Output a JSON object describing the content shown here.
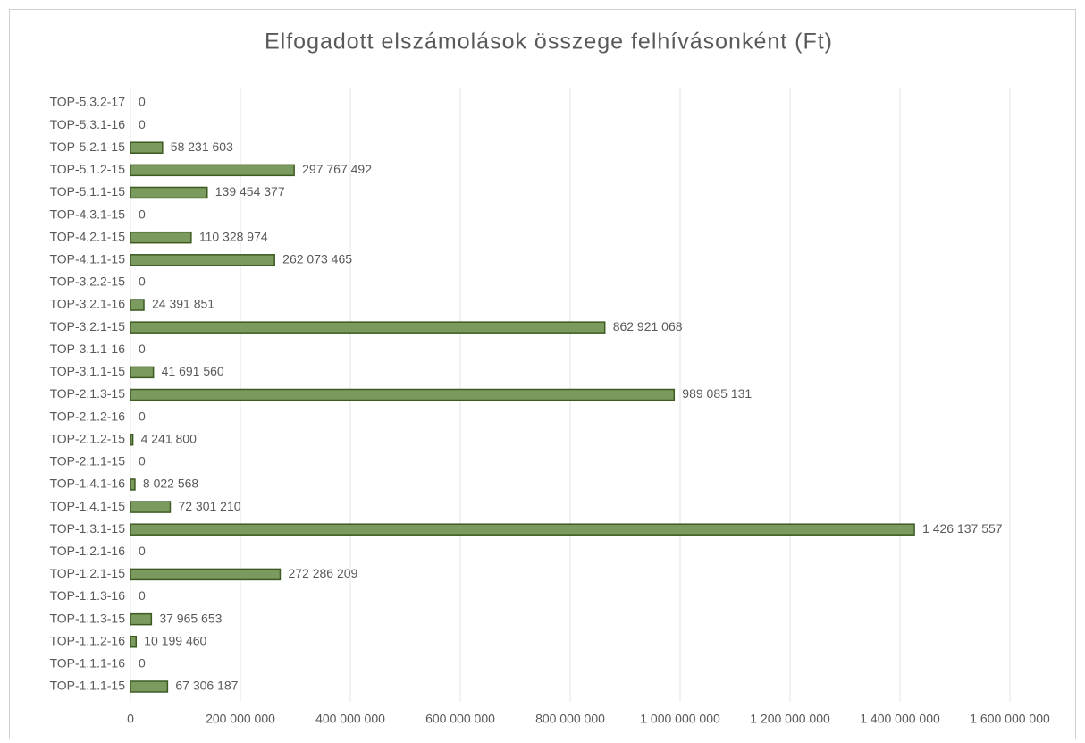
{
  "chart_data": {
    "type": "barh",
    "title": "Elfogadott elszámolások összege felhívásonként (Ft)",
    "categories": [
      "TOP-1.1.1-15",
      "TOP-1.1.1-16",
      "TOP-1.1.2-16",
      "TOP-1.1.3-15",
      "TOP-1.1.3-16",
      "TOP-1.2.1-15",
      "TOP-1.2.1-16",
      "TOP-1.3.1-15",
      "TOP-1.4.1-15",
      "TOP-1.4.1-16",
      "TOP-2.1.1-15",
      "TOP-2.1.2-15",
      "TOP-2.1.2-16",
      "TOP-2.1.3-15",
      "TOP-3.1.1-15",
      "TOP-3.1.1-16",
      "TOP-3.2.1-15",
      "TOP-3.2.1-16",
      "TOP-3.2.2-15",
      "TOP-4.1.1-15",
      "TOP-4.2.1-15",
      "TOP-4.3.1-15",
      "TOP-5.1.1-15",
      "TOP-5.1.2-15",
      "TOP-5.2.1-15",
      "TOP-5.3.1-16",
      "TOP-5.3.2-17"
    ],
    "values": [
      67306187,
      0,
      10199460,
      37965653,
      0,
      272286209,
      0,
      1426137557,
      72301210,
      8022568,
      0,
      4241800,
      0,
      989085131,
      41691560,
      0,
      862921068,
      24391851,
      0,
      262073465,
      110328974,
      0,
      139454377,
      297767492,
      58231603,
      0,
      0
    ],
    "value_labels": [
      "67 306 187",
      "0",
      "10 199 460",
      "37 965 653",
      "0",
      "272 286 209",
      "0",
      "1 426 137 557",
      "72 301 210",
      "8 022 568",
      "0",
      "4 241 800",
      "0",
      "989 085 131",
      "41 691 560",
      "0",
      "862 921 068",
      "24 391 851",
      "0",
      "262 073 465",
      "110 328 974",
      "0",
      "139 454 377",
      "297 767 492",
      "58 231 603",
      "0",
      "0"
    ],
    "color": "#7a9a5e",
    "xlim": [
      0,
      1600000000
    ],
    "xticks": [
      0,
      {
        "value": 200000000,
        "label": "200 000 000"
      },
      {
        "value": 400000000,
        "label": "400 000 000"
      },
      {
        "value": 600000000,
        "label": "600 000 000"
      },
      {
        "value": 800000000,
        "label": "800 000 000"
      },
      {
        "value": 1000000000,
        "label": "1 000 000 000"
      },
      {
        "value": 1200000000,
        "label": "1 200 000 000"
      },
      {
        "value": 1400000000,
        "label": "1 400 000 000"
      },
      {
        "value": 1600000000,
        "label": "1 600 000 000"
      }
    ],
    "grid": true
  }
}
